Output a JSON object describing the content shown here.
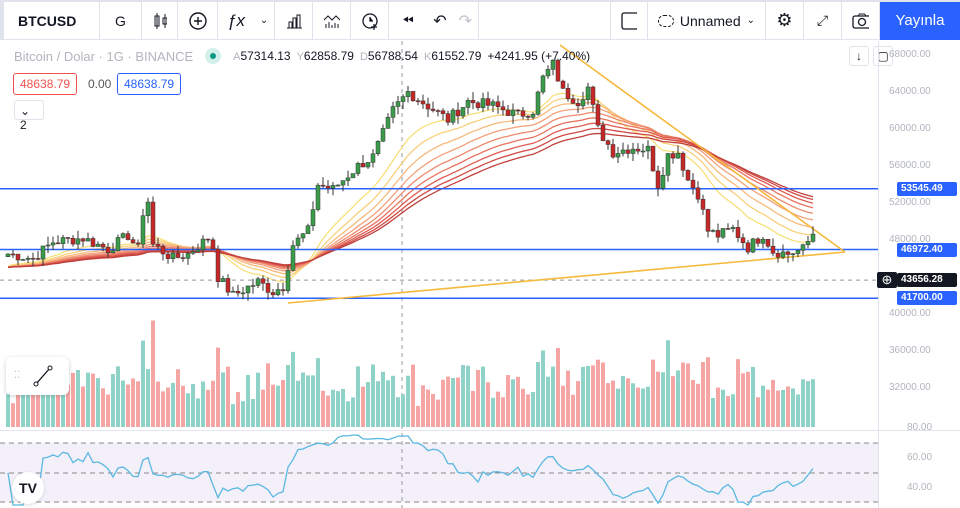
{
  "toolbar": {
    "symbol": "BTCUSD",
    "interval": "G",
    "layout_name": "Unnamed",
    "publish": "Yayınla"
  },
  "legend": {
    "title": "Bitcoin / Dolar · 1G · BINANCE",
    "o_label": "A",
    "o": "57314.13",
    "h_label": "Y",
    "h": "62858.79",
    "l_label": "D",
    "l": "56788.54",
    "c_label": "K",
    "c": "61552.79",
    "change": "+4241.95 (+7.40%)",
    "bid": "48638.79",
    "spread": "0.00",
    "ask": "48638.79",
    "indicators_count": "2"
  },
  "price_axis": {
    "ticks": [
      "68000.00",
      "64000.00",
      "60000.00",
      "56000.00",
      "52000.00",
      "48000.00",
      "40000.00",
      "36000.00",
      "32000.00"
    ],
    "rsi_ticks": [
      "80.00",
      "60.00",
      "40.00"
    ]
  },
  "levels": [
    {
      "price": 53545.49,
      "label": "53545.49"
    },
    {
      "price": 46972.4,
      "label": "46972.40"
    },
    {
      "price": 41700.0,
      "label": "41700.00"
    }
  ],
  "crosshair": {
    "price": 43656.28,
    "label": "43656.28"
  },
  "colors": {
    "up": "#26a69a",
    "down": "#ef5350",
    "level": "#2962ff",
    "trend": "#f9c74f",
    "accent": "#2962ff"
  },
  "chart_data": {
    "type": "candlestick",
    "price_path": [
      [
        0,
        46500
      ],
      [
        5,
        46000
      ],
      [
        9,
        47800
      ],
      [
        15,
        48200
      ],
      [
        20,
        47000
      ],
      [
        24,
        48500
      ],
      [
        26,
        47000
      ],
      [
        27,
        51000
      ],
      [
        28,
        52200
      ],
      [
        29,
        47500
      ],
      [
        33,
        46000
      ],
      [
        36,
        46500
      ],
      [
        40,
        48200
      ],
      [
        41,
        47200
      ],
      [
        42,
        44000
      ],
      [
        45,
        42000
      ],
      [
        50,
        43500
      ],
      [
        53,
        42400
      ],
      [
        55,
        43000
      ],
      [
        57,
        47500
      ],
      [
        60,
        49000
      ],
      [
        62,
        54000
      ],
      [
        65,
        53500
      ],
      [
        70,
        56000
      ],
      [
        73,
        57000
      ],
      [
        77,
        62000
      ],
      [
        80,
        64000
      ],
      [
        84,
        62500
      ],
      [
        88,
        61000
      ],
      [
        92,
        63000
      ],
      [
        97,
        62500
      ],
      [
        102,
        61500
      ],
      [
        105,
        62000
      ],
      [
        107,
        65500
      ],
      [
        109,
        67000
      ],
      [
        111,
        64000
      ],
      [
        114,
        63000
      ],
      [
        116,
        64500
      ],
      [
        118,
        60000
      ],
      [
        121,
        57500
      ],
      [
        125,
        58000
      ],
      [
        128,
        57800
      ],
      [
        130,
        54000
      ],
      [
        132,
        57200
      ],
      [
        134,
        57500
      ],
      [
        136,
        54500
      ],
      [
        138,
        53000
      ],
      [
        140,
        49000
      ],
      [
        142,
        48500
      ],
      [
        145,
        49200
      ],
      [
        148,
        47200
      ],
      [
        151,
        48600
      ],
      [
        153,
        46800
      ],
      [
        156,
        46500
      ],
      [
        159,
        47000
      ],
      [
        161,
        48638
      ]
    ]
  }
}
